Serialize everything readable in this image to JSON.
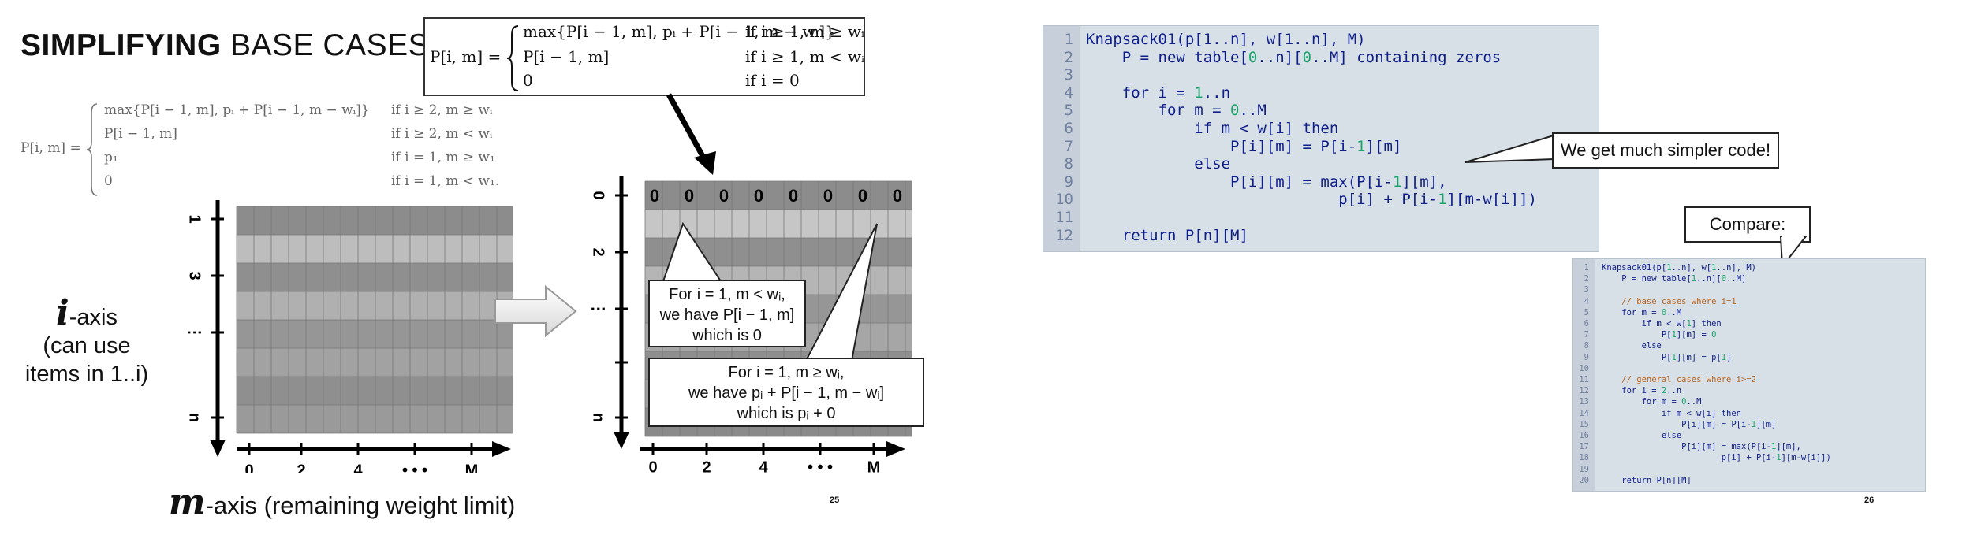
{
  "slide25": {
    "title_bold": "SIMPLIFYING",
    "title_rest": " BASE CASES",
    "new_recurrence": {
      "lhs": "P[i, m] =",
      "rows": [
        {
          "expr": "max{P[i − 1, m], pᵢ + P[i − 1, m − wᵢ]}",
          "cond": "if i ≥ 1, m ≥ wᵢ"
        },
        {
          "expr": "P[i − 1, m]",
          "cond": "if i ≥ 1, m < wᵢ"
        },
        {
          "expr": "0",
          "cond": "if i = 0"
        }
      ]
    },
    "old_recurrence": {
      "lhs": "P[i, m] =",
      "rows": [
        {
          "expr": "max{P[i − 1, m], pᵢ + P[i − 1, m − wᵢ]}",
          "cond": "if i ≥ 2, m ≥ wᵢ"
        },
        {
          "expr": "P[i − 1, m]",
          "cond": "if i ≥ 2, m < wᵢ"
        },
        {
          "expr": "p₁",
          "cond": "if i = 1, m ≥ w₁"
        },
        {
          "expr": "0",
          "cond": "if i = 1, m < w₁."
        }
      ]
    },
    "i_axis": {
      "symbol": "i",
      "suffix": "-axis",
      "line2": "(can use",
      "line3": "items in 1..i)"
    },
    "m_axis": {
      "symbol": "m",
      "suffix": "-axis (remaining weight limit)"
    },
    "left_grid": {
      "y_ticks": [
        "1",
        "3",
        "⋮",
        "n"
      ],
      "x_ticks": [
        "0",
        "2",
        "4",
        "• • •",
        "M"
      ]
    },
    "right_grid": {
      "y_ticks": [
        "0",
        "2",
        "⋮",
        "n"
      ],
      "x_ticks": [
        "0",
        "2",
        "4",
        "• • •",
        "M"
      ],
      "zero_row": [
        "0",
        "0",
        "0",
        "0",
        "0",
        "0",
        "0",
        "0",
        "0"
      ]
    },
    "callout1": {
      "line1": "For i = 1, m < wᵢ,",
      "line2": "we have P[i − 1, m]",
      "line3": "which is 0"
    },
    "callout2": {
      "line1": "For i = 1, m ≥ wᵢ,",
      "line2": "we have pᵢ + P[i − 1, m − wᵢ]",
      "line3": "which is pᵢ + 0"
    },
    "page_number": "25"
  },
  "slide26": {
    "main_code": [
      {
        "n": "1",
        "segs": [
          [
            "Knapsack01(p[1..n], w[1..n], M)",
            "kw"
          ]
        ]
      },
      {
        "n": "2",
        "segs": [
          [
            "    P = new table[",
            "kw"
          ],
          [
            "0",
            "num"
          ],
          [
            "..n][",
            "kw"
          ],
          [
            "0",
            "num"
          ],
          [
            "..M] containing zeros",
            "kw"
          ]
        ]
      },
      {
        "n": "3",
        "segs": []
      },
      {
        "n": "4",
        "segs": [
          [
            "    for i = ",
            "kw"
          ],
          [
            "1",
            "num"
          ],
          [
            "..n",
            "kw"
          ]
        ]
      },
      {
        "n": "5",
        "segs": [
          [
            "        for m = ",
            "kw"
          ],
          [
            "0",
            "num"
          ],
          [
            "..M",
            "kw"
          ]
        ]
      },
      {
        "n": "6",
        "segs": [
          [
            "            if m < w[i] then",
            "kw"
          ]
        ]
      },
      {
        "n": "7",
        "segs": [
          [
            "                P[i][m] = P[i-",
            "kw"
          ],
          [
            "1",
            "num"
          ],
          [
            "][m]",
            "kw"
          ]
        ]
      },
      {
        "n": "8",
        "segs": [
          [
            "            else",
            "kw"
          ]
        ]
      },
      {
        "n": "9",
        "segs": [
          [
            "                P[i][m] = max(P[i-",
            "kw"
          ],
          [
            "1",
            "num"
          ],
          [
            "][m],",
            "kw"
          ]
        ]
      },
      {
        "n": "10",
        "segs": [
          [
            "                            p[i] + P[i-",
            "kw"
          ],
          [
            "1",
            "num"
          ],
          [
            "][m-w[i]])",
            "kw"
          ]
        ]
      },
      {
        "n": "11",
        "segs": []
      },
      {
        "n": "12",
        "segs": [
          [
            "    return P[n][M]",
            "kw"
          ]
        ]
      }
    ],
    "bubble_main": "We get much simpler code!",
    "bubble_compare": "Compare:",
    "compare_code": [
      {
        "n": "1",
        "segs": [
          [
            "Knapsack01(p[",
            "kw"
          ],
          [
            "1",
            "num"
          ],
          [
            "..n], w[",
            "kw"
          ],
          [
            "1",
            "num"
          ],
          [
            "..n], M)",
            "kw"
          ]
        ]
      },
      {
        "n": "2",
        "segs": [
          [
            "    P = new table[",
            "kw"
          ],
          [
            "1",
            "num"
          ],
          [
            "..n][",
            "kw"
          ],
          [
            "0",
            "num"
          ],
          [
            "..M]",
            "kw"
          ]
        ]
      },
      {
        "n": "3",
        "segs": []
      },
      {
        "n": "4",
        "segs": [
          [
            "    // base cases where i=1",
            "cmt"
          ]
        ]
      },
      {
        "n": "5",
        "segs": [
          [
            "    for m = ",
            "kw"
          ],
          [
            "0",
            "num"
          ],
          [
            "..M",
            "kw"
          ]
        ]
      },
      {
        "n": "6",
        "segs": [
          [
            "        if m < w[",
            "kw"
          ],
          [
            "1",
            "num"
          ],
          [
            "] then",
            "kw"
          ]
        ]
      },
      {
        "n": "7",
        "segs": [
          [
            "            P[",
            "kw"
          ],
          [
            "1",
            "num"
          ],
          [
            "][m] = ",
            "kw"
          ],
          [
            "0",
            "num"
          ]
        ]
      },
      {
        "n": "8",
        "segs": [
          [
            "        else",
            "kw"
          ]
        ]
      },
      {
        "n": "9",
        "segs": [
          [
            "            P[",
            "kw"
          ],
          [
            "1",
            "num"
          ],
          [
            "][m] = p[",
            "kw"
          ],
          [
            "1",
            "num"
          ],
          [
            "]",
            "kw"
          ]
        ]
      },
      {
        "n": "10",
        "segs": []
      },
      {
        "n": "11",
        "segs": [
          [
            "    // general cases where i>=2",
            "cmt"
          ]
        ]
      },
      {
        "n": "12",
        "segs": [
          [
            "    for i = ",
            "kw"
          ],
          [
            "2",
            "num"
          ],
          [
            "..n",
            "kw"
          ]
        ]
      },
      {
        "n": "13",
        "segs": [
          [
            "        for m = ",
            "kw"
          ],
          [
            "0",
            "num"
          ],
          [
            "..M",
            "kw"
          ]
        ]
      },
      {
        "n": "14",
        "segs": [
          [
            "            if m < w[i] then",
            "kw"
          ]
        ]
      },
      {
        "n": "15",
        "segs": [
          [
            "                P[i][m] = P[i-",
            "kw"
          ],
          [
            "1",
            "num"
          ],
          [
            "][m]",
            "kw"
          ]
        ]
      },
      {
        "n": "16",
        "segs": [
          [
            "            else",
            "kw"
          ]
        ]
      },
      {
        "n": "17",
        "segs": [
          [
            "                P[i][m] = max(P[i-",
            "kw"
          ],
          [
            "1",
            "num"
          ],
          [
            "][m],",
            "kw"
          ]
        ]
      },
      {
        "n": "18",
        "segs": [
          [
            "                        p[i] + P[i-",
            "kw"
          ],
          [
            "1",
            "num"
          ],
          [
            "][m-w[i]])",
            "kw"
          ]
        ]
      },
      {
        "n": "19",
        "segs": []
      },
      {
        "n": "20",
        "segs": [
          [
            "    return P[n][M]",
            "kw"
          ]
        ]
      }
    ],
    "page_number": "26"
  }
}
